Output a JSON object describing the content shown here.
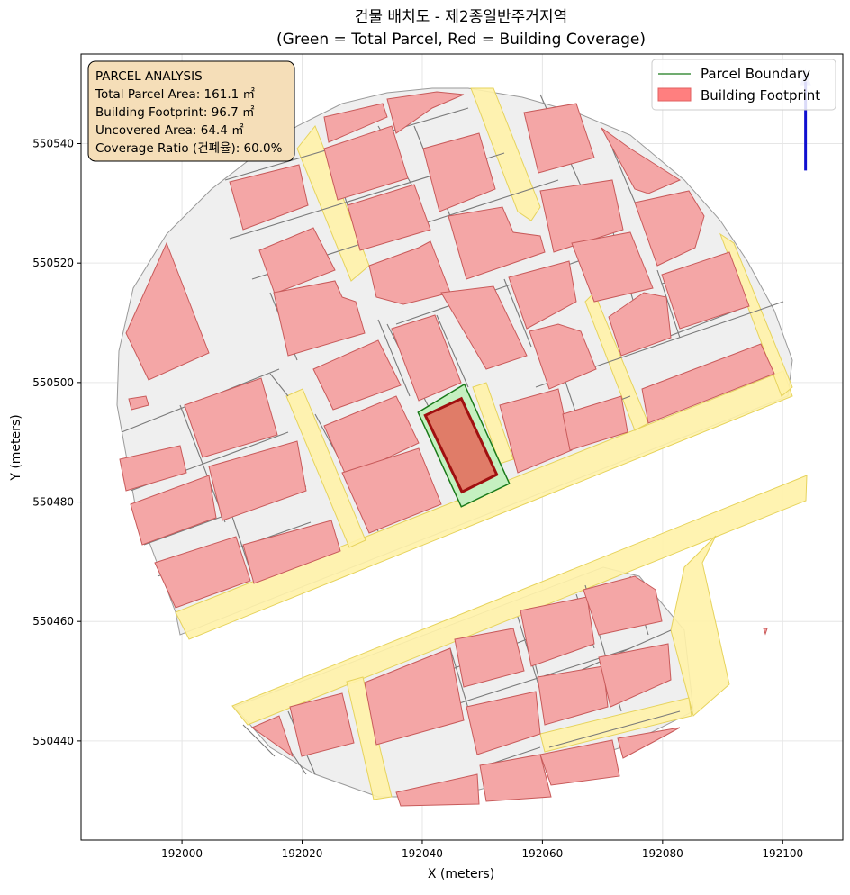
{
  "chart_data": {
    "type": "map",
    "title_line1": "건물 배치도 - 제2종일반주거지역",
    "title_line2": "(Green = Total Parcel, Red = Building Coverage)",
    "xlabel": "X (meters)",
    "ylabel": "Y (meters)",
    "xlim": [
      191983.2,
      192110.0
    ],
    "ylim": [
      550423.4,
      550555.0
    ],
    "grid": true,
    "xticks": [
      192000,
      192020,
      192040,
      192060,
      192080,
      192100
    ],
    "yticks": [
      550440,
      550460,
      550480,
      550500,
      550520,
      550540
    ],
    "xtick_labels": [
      "192000",
      "192020",
      "192040",
      "192060",
      "192080",
      "192100"
    ],
    "ytick_labels": [
      "550440",
      "550460",
      "550480",
      "550500",
      "550520",
      "550540"
    ],
    "legend": {
      "placement": "top-right",
      "entries": [
        {
          "label": "Parcel Boundary",
          "color": "#1a7a1a",
          "kind": "line"
        },
        {
          "label": "Building Footprint",
          "color": "#ff7f7f",
          "kind": "patch"
        }
      ]
    },
    "info_box": {
      "placement": "top-left",
      "heading": "PARCEL ANALYSIS",
      "lines": [
        "Total Parcel Area: 161.1 ㎡",
        "Building Footprint: 96.7 ㎡",
        "Uncovered Area: 64.4 ㎡",
        "Coverage Ratio (건폐율): 60.0%"
      ]
    },
    "target_parcel": {
      "total_area_m2": 161.1,
      "building_area_m2": 96.7,
      "uncovered_area_m2": 64.4,
      "coverage_ratio_pct": 60.0,
      "boundary": [
        [
          192039.3,
          550495.0
        ],
        [
          192047.0,
          550499.7
        ],
        [
          192054.5,
          550483.1
        ],
        [
          192046.5,
          550479.2
        ]
      ],
      "footprint": [
        [
          192040.5,
          550494.5
        ],
        [
          192046.5,
          550497.3
        ],
        [
          192052.4,
          550484.6
        ],
        [
          192046.6,
          550481.7
        ]
      ]
    },
    "north_arrow": {
      "x": 192103.8,
      "y_base": 550535.5,
      "y_tip": 550552.5
    },
    "colors": {
      "parcel_fill": "#efefef",
      "parcel_edge": "#7a7a7a",
      "road_fill": "#fff2a8",
      "road_edge": "#e6d35c",
      "building_fill": "#f4a6a6",
      "building_edge": "#c85a5a",
      "target_parcel_fill": "#c5f0c0",
      "target_parcel_edge": "#1a7a1a",
      "target_building_fill": "#e07c68",
      "target_building_edge": "#a01010",
      "info_box_fill": "#f5deb8",
      "north_arrow": "#1010d0"
    }
  }
}
